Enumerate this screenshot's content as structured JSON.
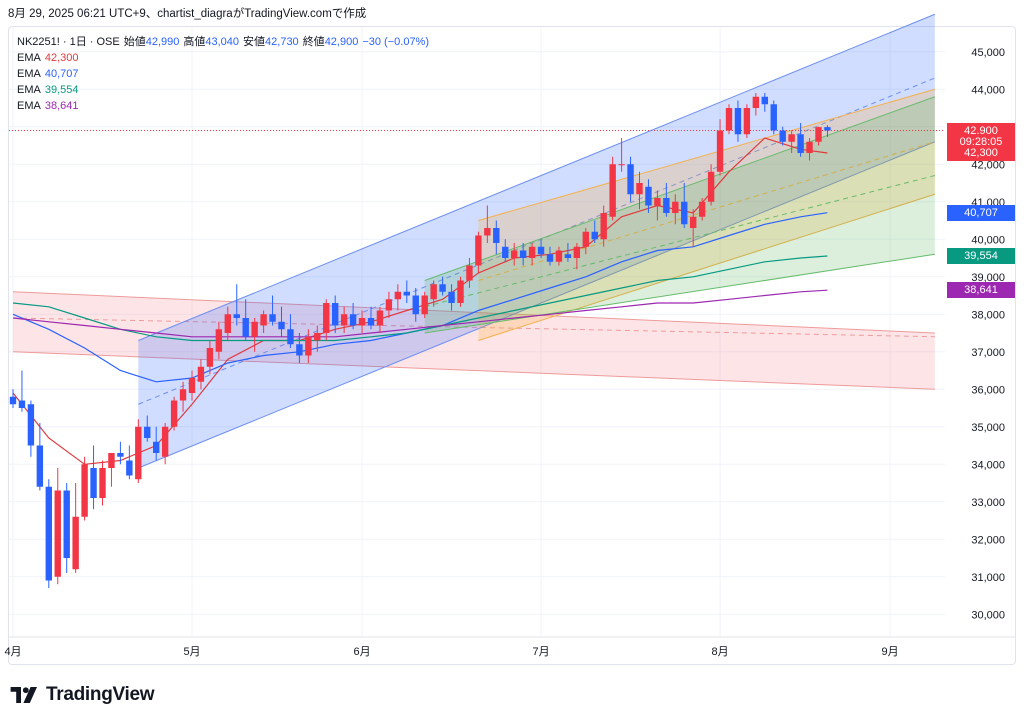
{
  "caption": "8月 29, 2025 06:21 UTC+9、chartist_diagraがTradingView.comで作成",
  "brand": {
    "name": "TradingView",
    "logo_icon": "tradingview-logo-icon"
  },
  "legend": {
    "symbol": "NK2251! · 1日 · OSE",
    "open_label": "始値",
    "open_value": "42,990",
    "high_label": "高値",
    "high_value": "43,040",
    "low_label": "安値",
    "low_value": "42,730",
    "close_label": "終値",
    "close_value": "42,900",
    "change": "−30 (−0.07%)",
    "emas": [
      {
        "label": "EMA",
        "value": "42,300",
        "color": "#e03a3e"
      },
      {
        "label": "EMA",
        "value": "40,707",
        "color": "#2962ff"
      },
      {
        "label": "EMA",
        "value": "39,554",
        "color": "#089981"
      },
      {
        "label": "EMA",
        "value": "38,641",
        "color": "#9c27b0"
      }
    ]
  },
  "price_tags": [
    {
      "text": "42,900",
      "color": "#f23645",
      "price": 42900
    },
    {
      "text": "09:28:05",
      "color": "#f23645",
      "price": 42600
    },
    {
      "text": "42,300",
      "color": "#f23645",
      "price": 42300
    },
    {
      "text": "40,707",
      "color": "#2962ff",
      "price": 40707
    },
    {
      "text": "39,554",
      "color": "#089981",
      "price": 39554
    },
    {
      "text": "38,641",
      "color": "#9c27b0",
      "price": 38641
    }
  ],
  "chart_data": {
    "type": "candlestick",
    "title": "NK2251! · 1日 · OSE",
    "ylim": [
      29500,
      45500
    ],
    "y_ticks": [
      "45,000",
      "44,000",
      "43,000",
      "42,000",
      "41,000",
      "40,000",
      "39,000",
      "38,000",
      "37,000",
      "36,000",
      "35,000",
      "34,000",
      "33,000",
      "32,000",
      "31,000",
      "30,000"
    ],
    "y_tick_values": [
      45000,
      44000,
      43000,
      42000,
      41000,
      40000,
      39000,
      38000,
      37000,
      36000,
      35000,
      34000,
      33000,
      32000,
      31000,
      30000
    ],
    "x_labels": [
      "4月",
      "5月",
      "6月",
      "7月",
      "8月",
      "9月"
    ],
    "x_label_bar_index": [
      0,
      20,
      39,
      59,
      79,
      98
    ],
    "up_color": "#f23645",
    "down_color": "#2962ff",
    "grid": true,
    "candles": [
      [
        35800,
        36000,
        35500,
        35600
      ],
      [
        35700,
        36500,
        35400,
        35500
      ],
      [
        35600,
        35700,
        34200,
        34500
      ],
      [
        34500,
        35100,
        33300,
        33400
      ],
      [
        33400,
        33600,
        30700,
        30900
      ],
      [
        31000,
        33900,
        30800,
        33300
      ],
      [
        33300,
        33500,
        31100,
        31500
      ],
      [
        31200,
        33500,
        31100,
        32600
      ],
      [
        32600,
        34200,
        32500,
        34000
      ],
      [
        33900,
        34500,
        32800,
        33100
      ],
      [
        33100,
        34100,
        32900,
        33900
      ],
      [
        33900,
        34300,
        33400,
        34300
      ],
      [
        34300,
        34600,
        34000,
        34200
      ],
      [
        34100,
        34500,
        33600,
        33700
      ],
      [
        33600,
        35200,
        33500,
        35000
      ],
      [
        35000,
        35300,
        34600,
        34700
      ],
      [
        34600,
        35000,
        34100,
        34300
      ],
      [
        34200,
        35100,
        34000,
        35000
      ],
      [
        35000,
        35800,
        34900,
        35700
      ],
      [
        35700,
        36200,
        35400,
        36000
      ],
      [
        35900,
        36500,
        35700,
        36300
      ],
      [
        36200,
        36800,
        36000,
        36600
      ],
      [
        36600,
        37300,
        36400,
        37100
      ],
      [
        37000,
        37800,
        36800,
        37600
      ],
      [
        37500,
        38200,
        37300,
        38000
      ],
      [
        38000,
        38800,
        37700,
        37900
      ],
      [
        37900,
        38400,
        37300,
        37400
      ],
      [
        37400,
        37900,
        37000,
        37800
      ],
      [
        37700,
        38100,
        37500,
        38000
      ],
      [
        38000,
        38500,
        37700,
        37800
      ],
      [
        37800,
        38200,
        37400,
        37600
      ],
      [
        37600,
        38000,
        37100,
        37200
      ],
      [
        37200,
        37500,
        36700,
        36900
      ],
      [
        36900,
        37600,
        36700,
        37400
      ],
      [
        37300,
        37700,
        37000,
        37500
      ],
      [
        37500,
        38400,
        37300,
        38300
      ],
      [
        38300,
        38500,
        37500,
        37700
      ],
      [
        37700,
        38200,
        37500,
        38000
      ],
      [
        38000,
        38300,
        37600,
        37700
      ],
      [
        37700,
        38100,
        37500,
        37900
      ],
      [
        37900,
        38200,
        37600,
        37700
      ],
      [
        37700,
        38200,
        37500,
        38100
      ],
      [
        38100,
        38600,
        37900,
        38400
      ],
      [
        38400,
        38800,
        38100,
        38600
      ],
      [
        38600,
        38900,
        38300,
        38500
      ],
      [
        38500,
        38700,
        37800,
        38000
      ],
      [
        38000,
        38600,
        37900,
        38500
      ],
      [
        38400,
        38900,
        38200,
        38800
      ],
      [
        38800,
        39000,
        38500,
        38600
      ],
      [
        38600,
        38800,
        38100,
        38300
      ],
      [
        38300,
        39000,
        38200,
        38900
      ],
      [
        38900,
        39500,
        38700,
        39300
      ],
      [
        39300,
        40200,
        39100,
        40100
      ],
      [
        40100,
        40900,
        39900,
        40300
      ],
      [
        40300,
        40500,
        39600,
        39900
      ],
      [
        39800,
        40000,
        39400,
        39500
      ],
      [
        39500,
        39900,
        39300,
        39700
      ],
      [
        39700,
        39900,
        39300,
        39500
      ],
      [
        39500,
        39900,
        39300,
        39800
      ],
      [
        39800,
        40000,
        39500,
        39600
      ],
      [
        39600,
        39800,
        39300,
        39400
      ],
      [
        39400,
        39800,
        39300,
        39700
      ],
      [
        39600,
        39900,
        39400,
        39500
      ],
      [
        39500,
        39900,
        39200,
        39800
      ],
      [
        39800,
        40300,
        39600,
        40200
      ],
      [
        40200,
        40500,
        39900,
        40000
      ],
      [
        40000,
        40900,
        39800,
        40700
      ],
      [
        40600,
        42200,
        40500,
        42000
      ],
      [
        42000,
        42700,
        41800,
        42000
      ],
      [
        42000,
        42200,
        41000,
        41200
      ],
      [
        41200,
        41800,
        40800,
        41500
      ],
      [
        41400,
        41600,
        40700,
        40900
      ],
      [
        40900,
        41300,
        40500,
        41100
      ],
      [
        41100,
        41500,
        40600,
        40700
      ],
      [
        40700,
        41200,
        40400,
        41000
      ],
      [
        41000,
        41500,
        40300,
        40400
      ],
      [
        40300,
        40800,
        39800,
        40600
      ],
      [
        40600,
        41100,
        40500,
        41000
      ],
      [
        41000,
        42000,
        40900,
        41800
      ],
      [
        41800,
        43200,
        41700,
        42900
      ],
      [
        42900,
        43600,
        42800,
        43500
      ],
      [
        43500,
        43700,
        42600,
        42800
      ],
      [
        42800,
        43600,
        42700,
        43500
      ],
      [
        43500,
        43900,
        43300,
        43800
      ],
      [
        43800,
        43900,
        43400,
        43600
      ],
      [
        43600,
        43700,
        42800,
        42900
      ],
      [
        42900,
        43000,
        42500,
        42600
      ],
      [
        42600,
        42900,
        42300,
        42800
      ],
      [
        42800,
        43100,
        42200,
        42300
      ],
      [
        42300,
        42700,
        42100,
        42600
      ],
      [
        42600,
        43000,
        42500,
        42990
      ],
      [
        42990,
        43040,
        42730,
        42900
      ]
    ],
    "ema": [
      {
        "value": 42300,
        "color": "#e03a3e",
        "points": [
          [
            0,
            35900
          ],
          [
            4,
            34700
          ],
          [
            8,
            34000
          ],
          [
            12,
            34100
          ],
          [
            16,
            34500
          ],
          [
            20,
            35600
          ],
          [
            24,
            36800
          ],
          [
            28,
            37300
          ],
          [
            32,
            37300
          ],
          [
            36,
            37600
          ],
          [
            40,
            37800
          ],
          [
            44,
            38100
          ],
          [
            48,
            38400
          ],
          [
            52,
            39100
          ],
          [
            56,
            39500
          ],
          [
            60,
            39600
          ],
          [
            64,
            39800
          ],
          [
            68,
            40600
          ],
          [
            72,
            40900
          ],
          [
            76,
            40700
          ],
          [
            80,
            41800
          ],
          [
            84,
            42700
          ],
          [
            88,
            42400
          ],
          [
            91,
            42300
          ]
        ]
      },
      {
        "value": 40707,
        "color": "#2962ff",
        "points": [
          [
            0,
            38000
          ],
          [
            4,
            37600
          ],
          [
            8,
            37100
          ],
          [
            12,
            36500
          ],
          [
            16,
            36200
          ],
          [
            20,
            36300
          ],
          [
            24,
            36700
          ],
          [
            28,
            36900
          ],
          [
            32,
            37000
          ],
          [
            36,
            37200
          ],
          [
            40,
            37300
          ],
          [
            44,
            37500
          ],
          [
            48,
            37700
          ],
          [
            52,
            38100
          ],
          [
            56,
            38400
          ],
          [
            60,
            38700
          ],
          [
            64,
            39000
          ],
          [
            68,
            39400
          ],
          [
            72,
            39700
          ],
          [
            76,
            39800
          ],
          [
            80,
            40100
          ],
          [
            84,
            40400
          ],
          [
            88,
            40600
          ],
          [
            91,
            40707
          ]
        ]
      },
      {
        "value": 39554,
        "color": "#089981",
        "points": [
          [
            0,
            38300
          ],
          [
            4,
            38200
          ],
          [
            8,
            37900
          ],
          [
            12,
            37600
          ],
          [
            16,
            37400
          ],
          [
            20,
            37300
          ],
          [
            24,
            37300
          ],
          [
            28,
            37300
          ],
          [
            32,
            37300
          ],
          [
            36,
            37300
          ],
          [
            40,
            37400
          ],
          [
            44,
            37500
          ],
          [
            48,
            37700
          ],
          [
            52,
            37900
          ],
          [
            56,
            38100
          ],
          [
            60,
            38300
          ],
          [
            64,
            38500
          ],
          [
            68,
            38700
          ],
          [
            72,
            38900
          ],
          [
            76,
            39000
          ],
          [
            80,
            39200
          ],
          [
            84,
            39400
          ],
          [
            88,
            39500
          ],
          [
            91,
            39554
          ]
        ]
      },
      {
        "value": 38641,
        "color": "#9c27b0",
        "points": [
          [
            0,
            37900
          ],
          [
            4,
            37800
          ],
          [
            8,
            37700
          ],
          [
            12,
            37600
          ],
          [
            16,
            37500
          ],
          [
            20,
            37400
          ],
          [
            24,
            37400
          ],
          [
            28,
            37400
          ],
          [
            32,
            37400
          ],
          [
            36,
            37400
          ],
          [
            40,
            37500
          ],
          [
            44,
            37600
          ],
          [
            48,
            37700
          ],
          [
            52,
            37800
          ],
          [
            56,
            37900
          ],
          [
            60,
            38000
          ],
          [
            64,
            38100
          ],
          [
            68,
            38200
          ],
          [
            72,
            38300
          ],
          [
            76,
            38300
          ],
          [
            80,
            38400
          ],
          [
            84,
            38500
          ],
          [
            88,
            38600
          ],
          [
            91,
            38641
          ]
        ]
      }
    ],
    "channels": [
      {
        "color": "#ef9a9a",
        "fill": "rgba(242,54,69,0.13)",
        "upper": [
          [
            0,
            38600
          ],
          [
            103,
            37500
          ]
        ],
        "lower": [
          [
            0,
            37000
          ],
          [
            103,
            36000
          ]
        ],
        "mid": [
          [
            0,
            37900
          ],
          [
            103,
            37400
          ]
        ]
      },
      {
        "color": "#6d8ff0",
        "fill": "rgba(41,98,255,0.22)",
        "upper": [
          [
            14,
            37300
          ],
          [
            103,
            46000
          ]
        ],
        "lower": [
          [
            14,
            33900
          ],
          [
            103,
            42600
          ]
        ],
        "mid": [
          [
            14,
            35600
          ],
          [
            103,
            44300
          ]
        ]
      },
      {
        "color": "#f5b04c",
        "fill": "rgba(255,167,38,0.22)",
        "upper": [
          [
            52,
            40500
          ],
          [
            103,
            44000
          ]
        ],
        "lower": [
          [
            52,
            37300
          ],
          [
            103,
            41200
          ]
        ],
        "mid": [
          [
            52,
            38900
          ],
          [
            103,
            42600
          ]
        ]
      },
      {
        "color": "#66bb6a",
        "fill": "rgba(76,175,80,0.20)",
        "upper": [
          [
            46,
            38900
          ],
          [
            103,
            43800
          ]
        ],
        "lower": [
          [
            46,
            37500
          ],
          [
            103,
            39600
          ]
        ],
        "mid": [
          [
            46,
            38200
          ],
          [
            103,
            41700
          ]
        ]
      }
    ],
    "last_price": 42900
  }
}
